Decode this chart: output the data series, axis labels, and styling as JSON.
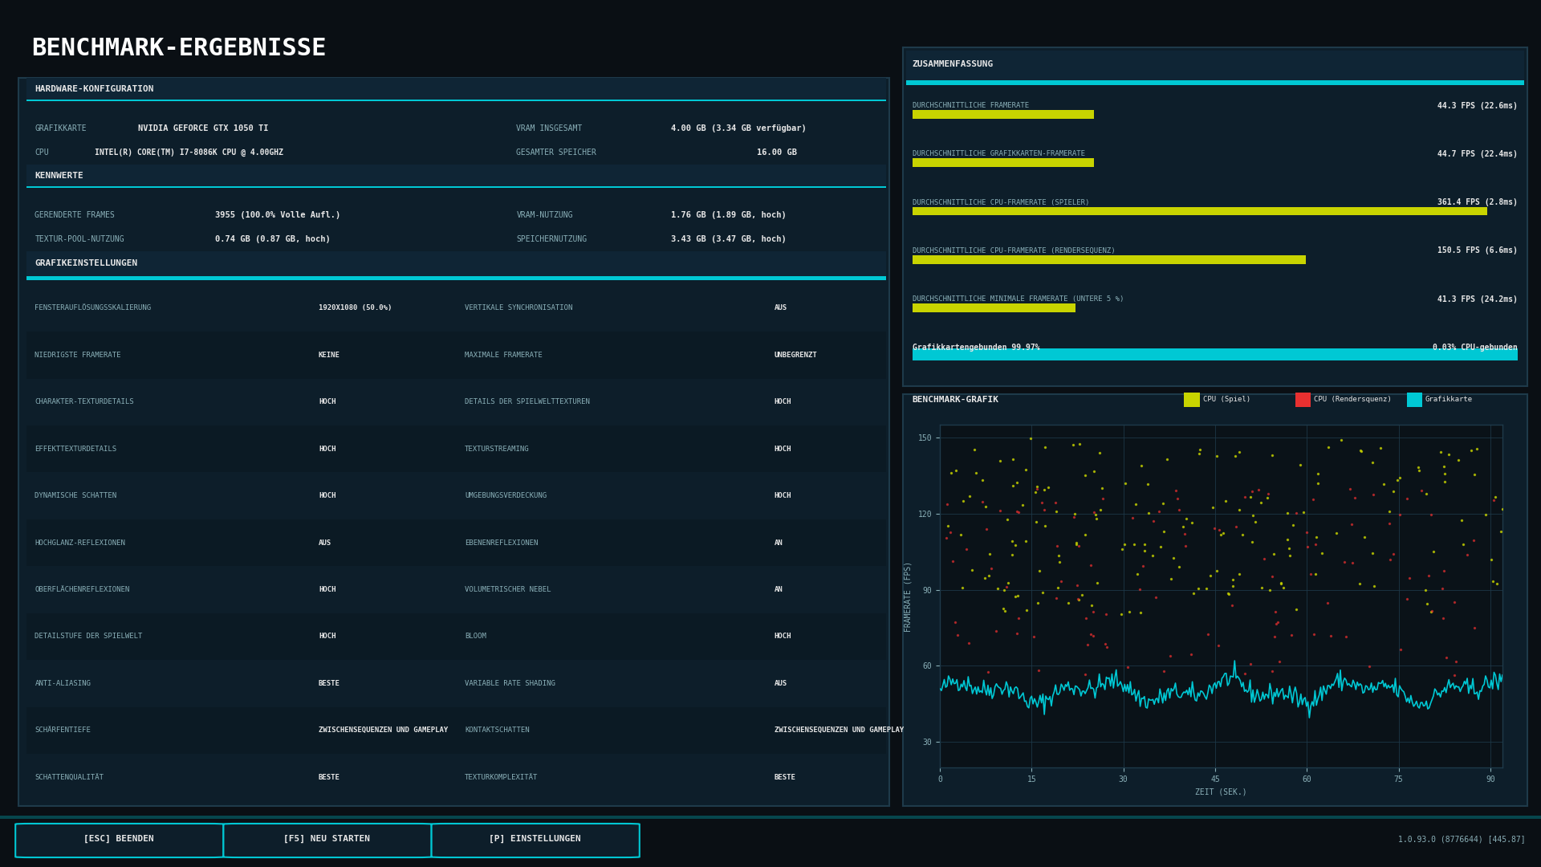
{
  "title": "BENCHMARK-ERGEBNISSE",
  "bg_color": "#0a0f14",
  "panel_bg": "#0d1e2a",
  "panel_bg2": "#0b1a24",
  "border_color": "#1e3a4a",
  "header_bg": "#0f2535",
  "accent_color": "#00c8d4",
  "text_white": "#e8e8e8",
  "text_dim": "#8ab0b8",
  "text_yellow": "#c8d400",
  "bar_yellow": "#c8d400",
  "bar_cyan": "#00c8d4",
  "bar_red": "#e83030",
  "hw_title": "HARDWARE-KONFIGURATION",
  "hw_rows": [
    [
      "GRAFIKKARTE",
      "NVIDIA GEFORCE GTX 1050 TI",
      "VRAM INSGESAMT",
      "4.00 GB (3.34 GB verfügbar)"
    ],
    [
      "CPU",
      "INTEL(R) CORE(TM) I7-8086K CPU @ 4.00GHZ",
      "GESAMTER SPEICHER",
      "16.00 GB"
    ]
  ],
  "kenn_title": "KENNWERTE",
  "kenn_rows": [
    [
      "GERENDERTE FRAMES",
      "3955 (100.0% Volle Aufl.)",
      "VRAM-NUTZUNG",
      "1.76 GB (1.89 GB, hoch)"
    ],
    [
      "TEXTUR-POOL-NUTZUNG",
      "0.74 GB (0.87 GB, hoch)",
      "SPEICHERNUTZUNG",
      "3.43 GB (3.47 GB, hoch)"
    ]
  ],
  "graf_title": "GRAFIKEINSTELLUNGEN",
  "graf_rows": [
    [
      "FENSTERAUFLÖSUNGSSKALIERUNG",
      "1920X1080 (50.0%)",
      "VERTIKALE SYNCHRONISATION",
      "AUS"
    ],
    [
      "NIEDRIGSTE FRAMERATE",
      "KEINE",
      "MAXIMALE FRAMERATE",
      "UNBEGRENZT"
    ],
    [
      "CHARAKTER-TEXTURDETAILS",
      "HOCH",
      "DETAILS DER SPIELWELTTEXTUREN",
      "HOCH"
    ],
    [
      "EFFEKTTEXTURDETAILS",
      "HOCH",
      "TEXTURSTREAMING",
      "HOCH"
    ],
    [
      "DYNAMISCHE SCHATTEN",
      "HOCH",
      "UMGEBUNGSVERDECKUNG",
      "HOCH"
    ],
    [
      "HOCHGLANZ-REFLEXIONEN",
      "AUS",
      "EBENENREFLEXIONEN",
      "AN"
    ],
    [
      "OBERFLÄCHENREFLEXIONEN",
      "HOCH",
      "VOLUMETRISCHER NEBEL",
      "AN"
    ],
    [
      "DETAILSTUFE DER SPIELWELT",
      "HOCH",
      "BLOOM",
      "HOCH"
    ],
    [
      "ANTI-ALIASING",
      "BESTE",
      "VARIABLE RATE SHADING",
      "AUS"
    ],
    [
      "SCHÄRFENTIEFE",
      "ZWISCHENSEQUENZEN UND GAMEPLAY",
      "KONTAKTSCHATTEN",
      "ZWISCHENSEQUENZEN UND GAMEPLAY"
    ],
    [
      "SCHATTENQUALITÄT",
      "BESTE",
      "TEXTURKOMPLEXITÄT",
      "BESTE"
    ]
  ],
  "zus_title": "ZUSAMMENFASSUNG",
  "zus_rows": [
    {
      "label": "DURCHSCHNITTLICHE FRAMERATE",
      "value": "44.3 FPS (22.6ms)",
      "bar_pct": 0.3,
      "bar_color": "#c8d400"
    },
    {
      "label": "DURCHSCHNITTLICHE GRAFIKKARTEN-FRAMERATE",
      "value": "44.7 FPS (22.4ms)",
      "bar_pct": 0.3,
      "bar_color": "#c8d400"
    },
    {
      "label": "DURCHSCHNITTLICHE CPU-FRAMERATE (SPIELER)",
      "value": "361.4 FPS (2.8ms)",
      "bar_pct": 0.95,
      "bar_color": "#c8d400"
    },
    {
      "label": "DURCHSCHNITTLICHE CPU-FRAMERATE (RENDERSEQUENZ)",
      "value": "150.5 FPS (6.6ms)",
      "bar_pct": 0.65,
      "bar_color": "#c8d400"
    },
    {
      "label": "DURCHSCHNITTLICHE MINIMALE FRAMERATE (UNTERE 5 %)",
      "value": "41.3 FPS (24.2ms)",
      "bar_pct": 0.27,
      "bar_color": "#c8d400"
    },
    {
      "label": "Grafikkartengebunden 99.97%",
      "value": "0.03% CPU-gebunden",
      "bar_pct": 0.9997,
      "bar_color": "#00c8d4"
    }
  ],
  "bench_title": "BENCHMARK-GRAFIK",
  "legend": [
    {
      "label": "CPU (Spiel)",
      "color": "#c8d400"
    },
    {
      "label": "CPU (Rendersquenz)",
      "color": "#e83030"
    },
    {
      "label": "Grafikkarte",
      "color": "#00c8d4"
    }
  ],
  "y_axis_label": "FRAMERATE (FPS)",
  "x_axis_label": "ZEIT (SEK.)",
  "x_ticks": [
    0,
    15,
    30,
    45,
    60,
    75,
    90
  ],
  "y_ticks": [
    30,
    60,
    90,
    120,
    150
  ],
  "y_lim": [
    20,
    155
  ],
  "x_lim": [
    0,
    92
  ],
  "version_str": "1.0.93.0 (8776644) [445.87]",
  "bottom_buttons": [
    "[ESC] BEENDEN",
    "[F5] NEU STARTEN",
    "[P] EINSTELLUNGEN"
  ]
}
